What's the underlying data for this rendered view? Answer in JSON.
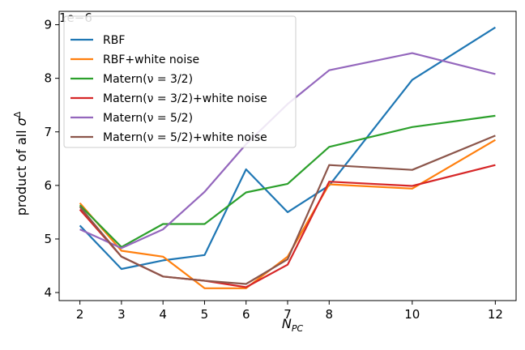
{
  "chart_data": {
    "type": "line",
    "x": [
      2,
      3,
      4,
      5,
      6,
      7,
      8,
      10,
      12
    ],
    "xlabel": "N_PC",
    "ylabel": "product of all σ^Δ",
    "y_scale_label": "1e−6",
    "y_multiplier": 1e-06,
    "ylim": [
      3.85,
      9.25
    ],
    "xlim": [
      1.5,
      12.5
    ],
    "yticks": [
      4,
      5,
      6,
      7,
      8,
      9
    ],
    "xticks": [
      2,
      3,
      4,
      5,
      6,
      7,
      8,
      10,
      12
    ],
    "grid": false,
    "legend_position": "top-left",
    "series": [
      {
        "name": "RBF",
        "color": "#1f77b4",
        "values": [
          5.25,
          4.44,
          4.6,
          4.7,
          6.3,
          5.5,
          6.0,
          7.97,
          8.95
        ]
      },
      {
        "name": "RBF+white noise",
        "color": "#ff7f0e",
        "values": [
          5.67,
          4.78,
          4.67,
          4.08,
          4.08,
          4.67,
          6.02,
          5.94,
          6.85
        ]
      },
      {
        "name": "Matern(ν = 3/2)",
        "color": "#2ca02c",
        "values": [
          5.63,
          4.85,
          5.28,
          5.28,
          5.87,
          6.03,
          6.72,
          7.09,
          7.3
        ]
      },
      {
        "name": "Matern(ν = 3/2)+white noise",
        "color": "#d62728",
        "values": [
          5.55,
          4.67,
          4.3,
          4.22,
          4.1,
          4.52,
          6.07,
          5.99,
          6.38
        ]
      },
      {
        "name": "Matern(ν = 5/2)",
        "color": "#9467bd",
        "values": [
          5.18,
          4.83,
          5.18,
          5.88,
          6.77,
          7.52,
          8.15,
          8.47,
          8.08
        ]
      },
      {
        "name": "Matern(ν = 5/2)+white noise",
        "color": "#8c564b",
        "values": [
          5.6,
          4.67,
          4.3,
          4.22,
          4.16,
          4.62,
          6.38,
          6.29,
          6.93
        ]
      }
    ]
  }
}
